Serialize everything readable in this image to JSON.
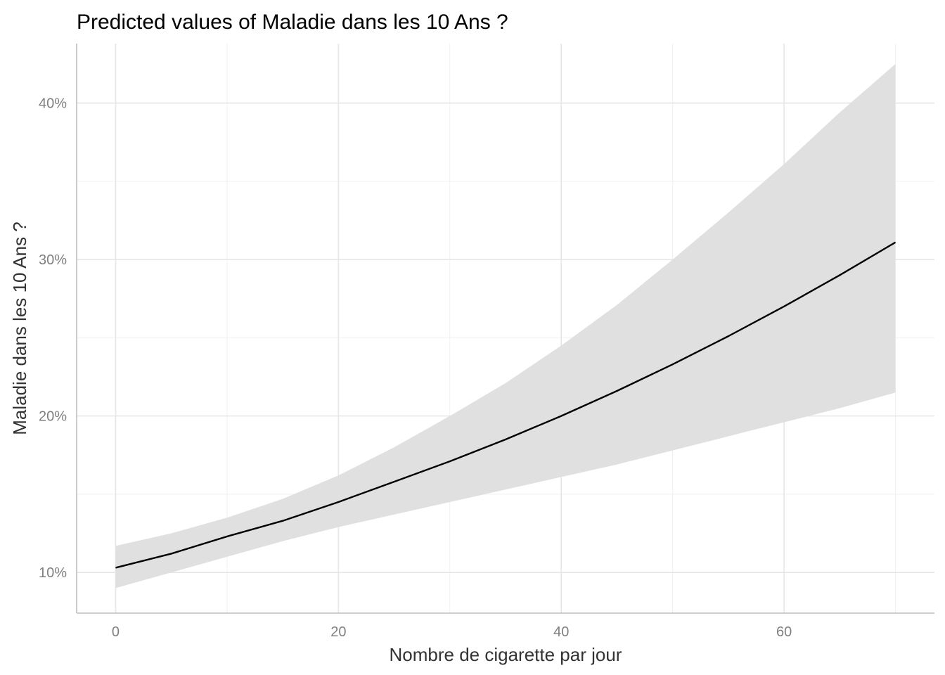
{
  "chart_data": {
    "type": "line",
    "title": "Predicted values of Maladie dans les 10 Ans ?",
    "xlabel": "Nombre de cigarette par jour",
    "ylabel": "Maladie dans les 10 Ans ?",
    "xlim": [
      -3.5,
      73.5
    ],
    "ylim": [
      7.4,
      43.8
    ],
    "x_ticks": [
      0,
      20,
      40,
      60
    ],
    "x_tick_labels": [
      "0",
      "20",
      "40",
      "60"
    ],
    "y_ticks": [
      10,
      20,
      30,
      40
    ],
    "y_tick_labels": [
      "10%",
      "20%",
      "30%",
      "40%"
    ],
    "grid": true,
    "legend": "none",
    "line_color": "#000000",
    "ribbon_color": "#e0e0e0",
    "series": [
      {
        "x": [
          0,
          5,
          10,
          15,
          20,
          25,
          30,
          35,
          40,
          45,
          50,
          55,
          60,
          65,
          70
        ],
        "values": [
          10.3,
          11.2,
          12.3,
          13.3,
          14.5,
          15.8,
          17.1,
          18.5,
          20.0,
          21.6,
          23.3,
          25.1,
          27.0,
          29.0,
          31.1
        ],
        "lower": [
          9.0,
          10.0,
          11.0,
          12.0,
          12.9,
          13.7,
          14.5,
          15.3,
          16.1,
          16.9,
          17.8,
          18.7,
          19.6,
          20.5,
          21.5
        ],
        "upper": [
          11.7,
          12.5,
          13.5,
          14.7,
          16.2,
          18.0,
          20.0,
          22.1,
          24.5,
          27.1,
          30.0,
          33.0,
          36.1,
          39.4,
          42.5
        ]
      }
    ]
  }
}
